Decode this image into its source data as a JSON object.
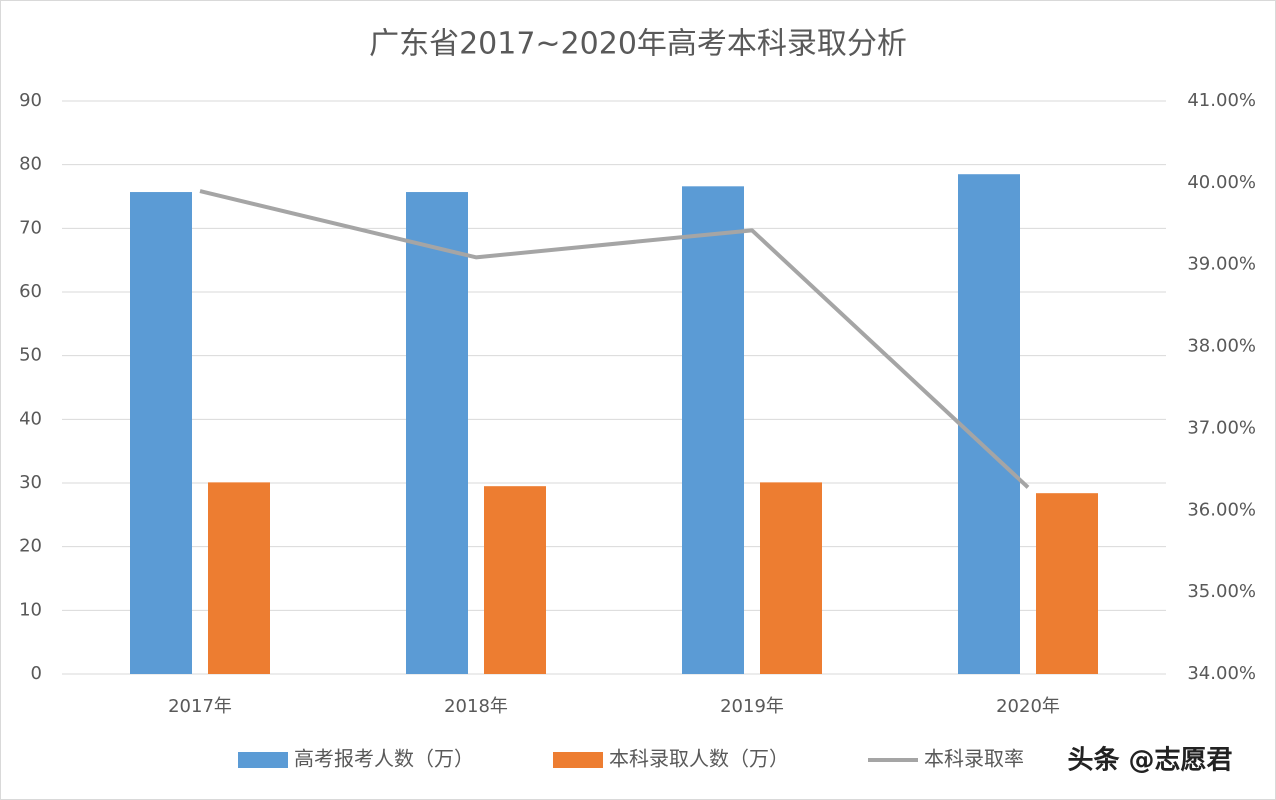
{
  "chart_data": {
    "type": "bar-line",
    "title": "广东省2017~2020年高考本科录取分析",
    "categories": [
      "2017年",
      "2018年",
      "2019年",
      "2020年"
    ],
    "series": [
      {
        "name": "高考报考人数（万）",
        "type": "bar",
        "color": "#5b9bd5",
        "values": [
          75.7,
          75.7,
          76.6,
          78.5
        ]
      },
      {
        "name": "本科录取人数（万）",
        "type": "bar",
        "color": "#ed7d31",
        "values": [
          30.1,
          29.5,
          30.1,
          28.4
        ]
      },
      {
        "name": "本科录取率",
        "type": "line",
        "axis": "y2",
        "color": "#a5a5a5",
        "values": [
          39.9,
          39.09,
          39.42,
          36.28
        ]
      }
    ],
    "ylim": [
      0,
      90
    ],
    "yticks": [
      0,
      10,
      20,
      30,
      40,
      50,
      60,
      70,
      80,
      90
    ],
    "y2lim": [
      34,
      41
    ],
    "y2ticks": [
      {
        "value": 34,
        "label": "34.00%"
      },
      {
        "value": 35,
        "label": "35.00%"
      },
      {
        "value": 36,
        "label": "36.00%"
      },
      {
        "value": 37,
        "label": "37.00%"
      },
      {
        "value": 38,
        "label": "38.00%"
      },
      {
        "value": 39,
        "label": "39.00%"
      },
      {
        "value": 40,
        "label": "40.00%"
      },
      {
        "value": 41,
        "label": "41.00%"
      }
    ],
    "grid": true,
    "legend": "bottom",
    "watermark": "头条 @志愿君"
  }
}
